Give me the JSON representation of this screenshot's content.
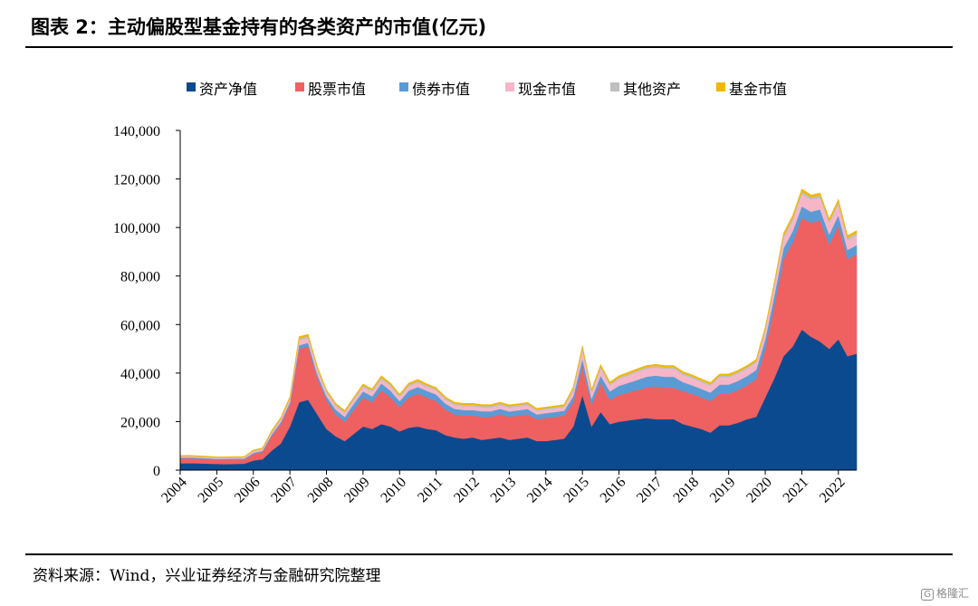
{
  "header": {
    "title": "图表 2：主动偏股型基金持有的各类资产的市值(亿元)"
  },
  "footer": {
    "source": "资料来源：Wind，兴业证券经济与金融研究院整理"
  },
  "watermark": {
    "brand": "格隆汇",
    "mark": "G"
  },
  "chart_data": {
    "type": "area",
    "stacked": true,
    "title": "图表 2：主动偏股型基金持有的各类资产的市值(亿元)",
    "xlabel": "",
    "ylabel": "",
    "ylim": [
      0,
      140000
    ],
    "yticks": [
      0,
      20000,
      40000,
      60000,
      80000,
      100000,
      120000,
      140000
    ],
    "ytick_labels": [
      "0",
      "20,000",
      "40,000",
      "60,000",
      "80,000",
      "100,000",
      "120,000",
      "140,000"
    ],
    "x_labels": [
      "2004",
      "2005",
      "2006",
      "2007",
      "2008",
      "2009",
      "2010",
      "2011",
      "2012",
      "2013",
      "2014",
      "2015",
      "2016",
      "2017",
      "2018",
      "2019",
      "2020",
      "2021",
      "2022"
    ],
    "x_label_positions": [
      0,
      4,
      8,
      12,
      16,
      20,
      24,
      28,
      32,
      36,
      40,
      44,
      48,
      52,
      56,
      60,
      64,
      68,
      72
    ],
    "grid": false,
    "legend_position": "top",
    "series": [
      {
        "name": "资产净值",
        "color": "#0b4a8f",
        "values": [
          2800,
          2900,
          2800,
          2700,
          2600,
          2500,
          2600,
          2700,
          4000,
          4500,
          8000,
          11000,
          18000,
          28000,
          29000,
          23000,
          17000,
          14000,
          12000,
          15000,
          18000,
          17000,
          19000,
          18000,
          16000,
          17500,
          18000,
          17000,
          16500,
          14500,
          13500,
          13000,
          13500,
          12500,
          13000,
          13500,
          12500,
          13000,
          13500,
          12000,
          12000,
          12500,
          13000,
          18000,
          31000,
          18000,
          24000,
          19000,
          20000,
          20500,
          21000,
          21500,
          21000,
          21000,
          21000,
          19000,
          18000,
          17000,
          15500,
          18500,
          18500,
          19500,
          21000,
          22000,
          30000,
          38000,
          47000,
          51000,
          58000,
          55000,
          53000,
          50000,
          54000,
          47000,
          48000
        ]
      },
      {
        "name": "股票市值",
        "color": "#ef6060",
        "values": [
          2000,
          2000,
          1900,
          1800,
          1700,
          1800,
          1800,
          1700,
          2600,
          3000,
          6000,
          8000,
          9000,
          22000,
          22000,
          15000,
          12000,
          9000,
          8000,
          10000,
          12000,
          11000,
          14000,
          12000,
          10000,
          12500,
          13500,
          13000,
          12000,
          10500,
          9500,
          9500,
          9000,
          9500,
          9000,
          9500,
          9500,
          9500,
          9500,
          9000,
          9500,
          9500,
          9500,
          10000,
          12000,
          9000,
          12000,
          10000,
          11000,
          11500,
          12000,
          12500,
          13500,
          13000,
          13000,
          13500,
          13500,
          13000,
          13000,
          13000,
          13000,
          13500,
          14000,
          15500,
          20000,
          30000,
          40000,
          43000,
          46000,
          47000,
          50000,
          43000,
          47000,
          40000,
          41000
        ]
      },
      {
        "name": "债券市值",
        "color": "#5b9bd5",
        "values": [
          400,
          400,
          400,
          400,
          400,
          400,
          400,
          400,
          500,
          500,
          700,
          800,
          1000,
          1500,
          1500,
          1500,
          1500,
          2000,
          2000,
          2500,
          2500,
          2500,
          2800,
          2800,
          2500,
          2800,
          2800,
          2700,
          2700,
          2500,
          2300,
          2300,
          2300,
          2300,
          2300,
          2300,
          2200,
          2200,
          2200,
          2000,
          2000,
          2000,
          2000,
          2500,
          3000,
          2500,
          3000,
          3500,
          3800,
          4000,
          4200,
          4500,
          4500,
          4500,
          4500,
          3800,
          3500,
          3500,
          3500,
          3800,
          3800,
          3800,
          3800,
          3800,
          4000,
          4200,
          4500,
          4500,
          4800,
          4500,
          4500,
          4200,
          4200,
          3800,
          3800
        ]
      },
      {
        "name": "现金市值",
        "color": "#f7b6c8",
        "values": [
          400,
          400,
          400,
          400,
          400,
          400,
          400,
          400,
          600,
          600,
          800,
          1000,
          1200,
          2000,
          2000,
          2000,
          1500,
          1500,
          1500,
          1500,
          1800,
          1800,
          1800,
          1800,
          1700,
          1800,
          1800,
          1700,
          1700,
          1600,
          1600,
          1600,
          1600,
          1600,
          1600,
          1600,
          1600,
          1600,
          1600,
          1500,
          1500,
          1500,
          1500,
          2500,
          3500,
          2500,
          3000,
          2500,
          2800,
          3000,
          3300,
          3300,
          3300,
          3300,
          3300,
          3000,
          3000,
          2800,
          2800,
          3000,
          3000,
          3000,
          3000,
          3000,
          3500,
          3800,
          4200,
          4500,
          5000,
          5000,
          4800,
          4500,
          4500,
          4000,
          4000
        ]
      },
      {
        "name": "其他资产",
        "color": "#bfbfbf",
        "values": [
          200,
          200,
          200,
          200,
          200,
          200,
          200,
          200,
          300,
          300,
          400,
          500,
          600,
          800,
          800,
          700,
          600,
          600,
          600,
          600,
          700,
          700,
          700,
          700,
          600,
          700,
          700,
          600,
          600,
          600,
          600,
          600,
          600,
          600,
          600,
          600,
          600,
          600,
          600,
          500,
          500,
          500,
          500,
          700,
          900,
          700,
          800,
          700,
          700,
          700,
          700,
          700,
          700,
          700,
          700,
          700,
          700,
          700,
          700,
          700,
          700,
          700,
          700,
          700,
          800,
          900,
          1000,
          1000,
          1100,
          1000,
          1000,
          1000,
          1000,
          1000,
          1000
        ]
      },
      {
        "name": "基金市值",
        "color": "#f2b705",
        "values": [
          200,
          200,
          200,
          200,
          200,
          200,
          200,
          200,
          300,
          300,
          400,
          400,
          500,
          700,
          700,
          600,
          500,
          500,
          500,
          500,
          500,
          500,
          600,
          600,
          500,
          600,
          600,
          500,
          500,
          500,
          500,
          500,
          500,
          500,
          500,
          500,
          500,
          500,
          500,
          500,
          500,
          500,
          500,
          600,
          800,
          600,
          700,
          600,
          600,
          600,
          600,
          600,
          600,
          600,
          600,
          600,
          600,
          600,
          600,
          600,
          600,
          600,
          600,
          600,
          700,
          800,
          900,
          900,
          1000,
          900,
          900,
          900,
          900,
          900,
          900
        ]
      }
    ]
  }
}
